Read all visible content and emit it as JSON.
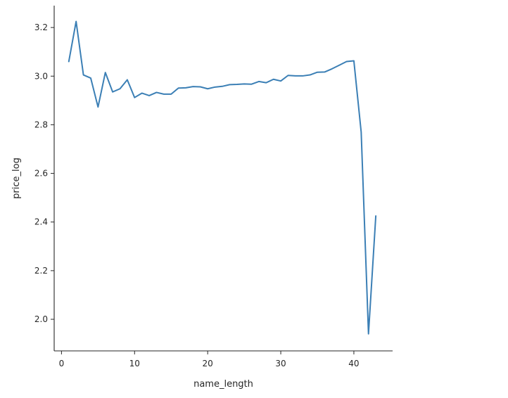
{
  "chart_data": {
    "type": "line",
    "xlabel": "name_length",
    "ylabel": "price_log",
    "xlim": [
      -1,
      45.3
    ],
    "ylim": [
      1.87,
      3.29
    ],
    "x_ticks": [
      0,
      10,
      20,
      30,
      40
    ],
    "y_ticks": [
      2.0,
      2.2,
      2.4,
      2.6,
      2.8,
      3.0,
      3.2
    ],
    "x_tick_labels": [
      "0",
      "10",
      "20",
      "30",
      "40"
    ],
    "y_tick_labels": [
      "2.0",
      "2.2",
      "2.4",
      "2.6",
      "2.8",
      "3.0",
      "3.2"
    ],
    "grid": false,
    "spines": "left-bottom",
    "series": [
      {
        "color": "#3b7fb5",
        "x": [
          1,
          2,
          3,
          4,
          5,
          6,
          7,
          8,
          9,
          10,
          11,
          12,
          13,
          14,
          15,
          16,
          17,
          18,
          19,
          20,
          21,
          22,
          23,
          24,
          25,
          26,
          27,
          28,
          29,
          30,
          31,
          32,
          33,
          34,
          35,
          36,
          37,
          38,
          39,
          40,
          41,
          42,
          43
        ],
        "y": [
          3.06,
          3.225,
          3.005,
          2.992,
          2.873,
          3.015,
          2.935,
          2.948,
          2.985,
          2.912,
          2.93,
          2.92,
          2.933,
          2.926,
          2.926,
          2.951,
          2.952,
          2.957,
          2.956,
          2.948,
          2.955,
          2.958,
          2.965,
          2.966,
          2.968,
          2.967,
          2.978,
          2.973,
          2.987,
          2.98,
          3.003,
          3.001,
          3.001,
          3.005,
          3.016,
          3.017,
          3.03,
          3.045,
          3.06,
          3.063,
          2.77,
          1.94,
          2.425
        ]
      }
    ]
  }
}
